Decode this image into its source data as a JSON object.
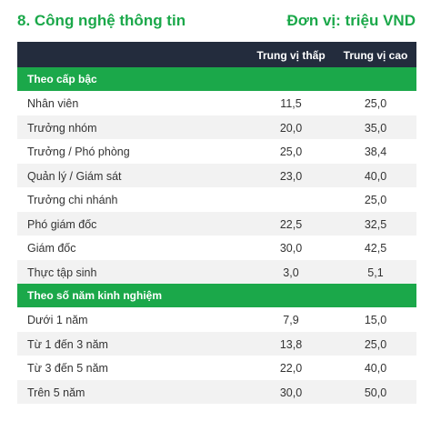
{
  "header": {
    "title": "8. Công nghệ thông tin",
    "unit": "Đơn vị: triệu VND"
  },
  "table": {
    "columns": [
      "",
      "Trung vị thấp",
      "Trung vị cao"
    ],
    "sections": [
      {
        "label": "Theo cấp bậc",
        "rows": [
          {
            "name": "Nhân viên",
            "low": "11,5",
            "high": "25,0"
          },
          {
            "name": "Trưởng nhóm",
            "low": "20,0",
            "high": "35,0"
          },
          {
            "name": "Trưởng / Phó phòng",
            "low": "25,0",
            "high": "38,4"
          },
          {
            "name": "Quản lý / Giám sát",
            "low": "23,0",
            "high": "40,0"
          },
          {
            "name": "Trưởng chi nhánh",
            "low": "",
            "high": "25,0"
          },
          {
            "name": "Phó giám đốc",
            "low": "22,5",
            "high": "32,5"
          },
          {
            "name": "Giám đốc",
            "low": "30,0",
            "high": "42,5"
          },
          {
            "name": "Thực tập sinh",
            "low": "3,0",
            "high": "5,1"
          }
        ]
      },
      {
        "label": "Theo số năm kinh nghiệm",
        "rows": [
          {
            "name": "Dưới 1 năm",
            "low": "7,9",
            "high": "15,0"
          },
          {
            "name": "Từ 1 đến 3 năm",
            "low": "13,8",
            "high": "25,0"
          },
          {
            "name": "Từ 3 đến 5 năm",
            "low": "22,0",
            "high": "40,0"
          },
          {
            "name": "Trên 5 năm",
            "low": "30,0",
            "high": "50,0"
          }
        ]
      }
    ]
  },
  "colors": {
    "accent": "#1ba84a",
    "header_bg": "#232c3d",
    "stripe": "#f2f2f2"
  }
}
